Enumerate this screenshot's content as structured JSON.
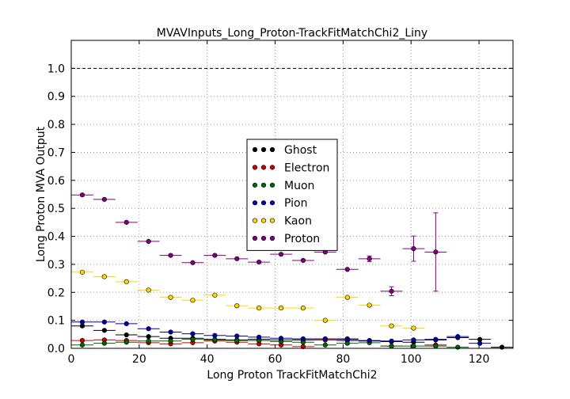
{
  "chart_data": {
    "type": "scatter",
    "title": "MVAVInputs_Long_Proton-TrackFitMatchChi2_Liny",
    "xlabel": "Long Proton TrackFitMatchChi2",
    "ylabel": "Long Proton MVA Output",
    "xlim": [
      0,
      130
    ],
    "ylim": [
      0,
      1.1
    ],
    "xticks": [
      0,
      20,
      40,
      60,
      80,
      100,
      120
    ],
    "yticks": [
      0.0,
      0.1,
      0.2,
      0.3,
      0.4,
      0.5,
      0.6,
      0.7,
      0.8,
      0.9,
      1.0
    ],
    "ytick_labels": [
      "0.0",
      "0.1",
      "0.2",
      "0.3",
      "0.4",
      "0.5",
      "0.6",
      "0.7",
      "0.8",
      "0.9",
      "1.0"
    ],
    "xtick_labels": [
      "0",
      "20",
      "40",
      "60",
      "80",
      "100",
      "120"
    ],
    "grid": true,
    "reference_line": 1.0,
    "bin_half_width": 3.25,
    "legend_position": "center",
    "x": [
      3.25,
      9.75,
      16.25,
      22.75,
      29.25,
      35.75,
      42.25,
      48.75,
      55.25,
      61.75,
      68.25,
      74.75,
      81.25,
      87.75,
      94.25,
      100.75,
      107.25,
      113.75,
      120.25,
      126.75
    ],
    "series": [
      {
        "name": "Ghost",
        "color": "#000000",
        "values": [
          0.08,
          0.064,
          0.048,
          0.042,
          0.036,
          0.036,
          0.032,
          0.03,
          0.032,
          0.03,
          0.03,
          0.03,
          0.028,
          0.026,
          0.024,
          0.022,
          0.03,
          0.038,
          0.032,
          0.004
        ],
        "errors": [
          0.004,
          0.003,
          0.003,
          0.003,
          0.003,
          0.003,
          0.003,
          0.003,
          0.003,
          0.003,
          0.003,
          0.003,
          0.003,
          0.003,
          0.004,
          0.004,
          0.005,
          0.006,
          0.006,
          0.003
        ]
      },
      {
        "name": "Electron",
        "color": "#cc0000",
        "values": [
          0.028,
          0.03,
          0.028,
          0.02,
          0.016,
          0.02,
          0.026,
          0.022,
          0.016,
          0.012,
          0.006,
          0.03,
          0.034,
          null,
          0.008,
          null,
          0.012,
          null,
          null,
          null
        ],
        "errors": [
          0.002,
          0.002,
          0.002,
          0.002,
          0.002,
          0.002,
          0.002,
          0.002,
          0.002,
          0.002,
          0.002,
          0.003,
          0.003,
          null,
          0.003,
          null,
          0.003,
          null,
          null,
          null
        ]
      },
      {
        "name": "Muon",
        "color": "#006400",
        "values": [
          0.012,
          0.018,
          0.022,
          0.026,
          0.026,
          0.032,
          0.03,
          0.028,
          0.028,
          0.024,
          0.022,
          0.012,
          0.018,
          0.02,
          0.008,
          0.008,
          0.008,
          0.004,
          null,
          null
        ],
        "errors": [
          0.002,
          0.002,
          0.002,
          0.002,
          0.002,
          0.002,
          0.002,
          0.002,
          0.002,
          0.002,
          0.002,
          0.002,
          0.002,
          0.002,
          0.002,
          0.002,
          0.002,
          0.002,
          null,
          null
        ]
      },
      {
        "name": "Pion",
        "color": "#0000aa",
        "values": [
          0.094,
          0.094,
          0.088,
          0.07,
          0.058,
          0.052,
          0.046,
          0.044,
          0.04,
          0.036,
          0.034,
          0.034,
          0.032,
          0.028,
          0.026,
          0.03,
          0.032,
          0.042,
          0.018,
          null
        ],
        "errors": [
          0.003,
          0.003,
          0.003,
          0.003,
          0.003,
          0.003,
          0.003,
          0.003,
          0.003,
          0.003,
          0.003,
          0.003,
          0.003,
          0.003,
          0.003,
          0.004,
          0.004,
          0.005,
          0.005,
          null
        ]
      },
      {
        "name": "Kaon",
        "color": "#ffd700",
        "values": [
          0.272,
          0.256,
          0.238,
          0.208,
          0.182,
          0.172,
          0.19,
          0.152,
          0.144,
          0.144,
          0.144,
          0.1,
          0.182,
          0.154,
          0.08,
          0.072,
          null,
          null,
          null,
          null
        ],
        "errors": [
          0.003,
          0.003,
          0.003,
          0.003,
          0.003,
          0.003,
          0.003,
          0.003,
          0.003,
          0.003,
          0.003,
          0.003,
          0.004,
          0.004,
          0.005,
          0.008,
          null,
          null,
          null,
          null
        ]
      },
      {
        "name": "Proton",
        "color": "#800080",
        "values": [
          0.548,
          0.532,
          0.45,
          0.382,
          0.332,
          0.306,
          0.332,
          0.32,
          0.308,
          0.336,
          0.314,
          0.344,
          0.282,
          0.32,
          0.204,
          0.356,
          0.344,
          null,
          null,
          null
        ],
        "errors": [
          0.003,
          0.003,
          0.003,
          0.003,
          0.003,
          0.003,
          0.003,
          0.003,
          0.003,
          0.004,
          0.004,
          0.005,
          0.007,
          0.01,
          0.016,
          0.045,
          0.14,
          null,
          null,
          null
        ]
      }
    ]
  }
}
